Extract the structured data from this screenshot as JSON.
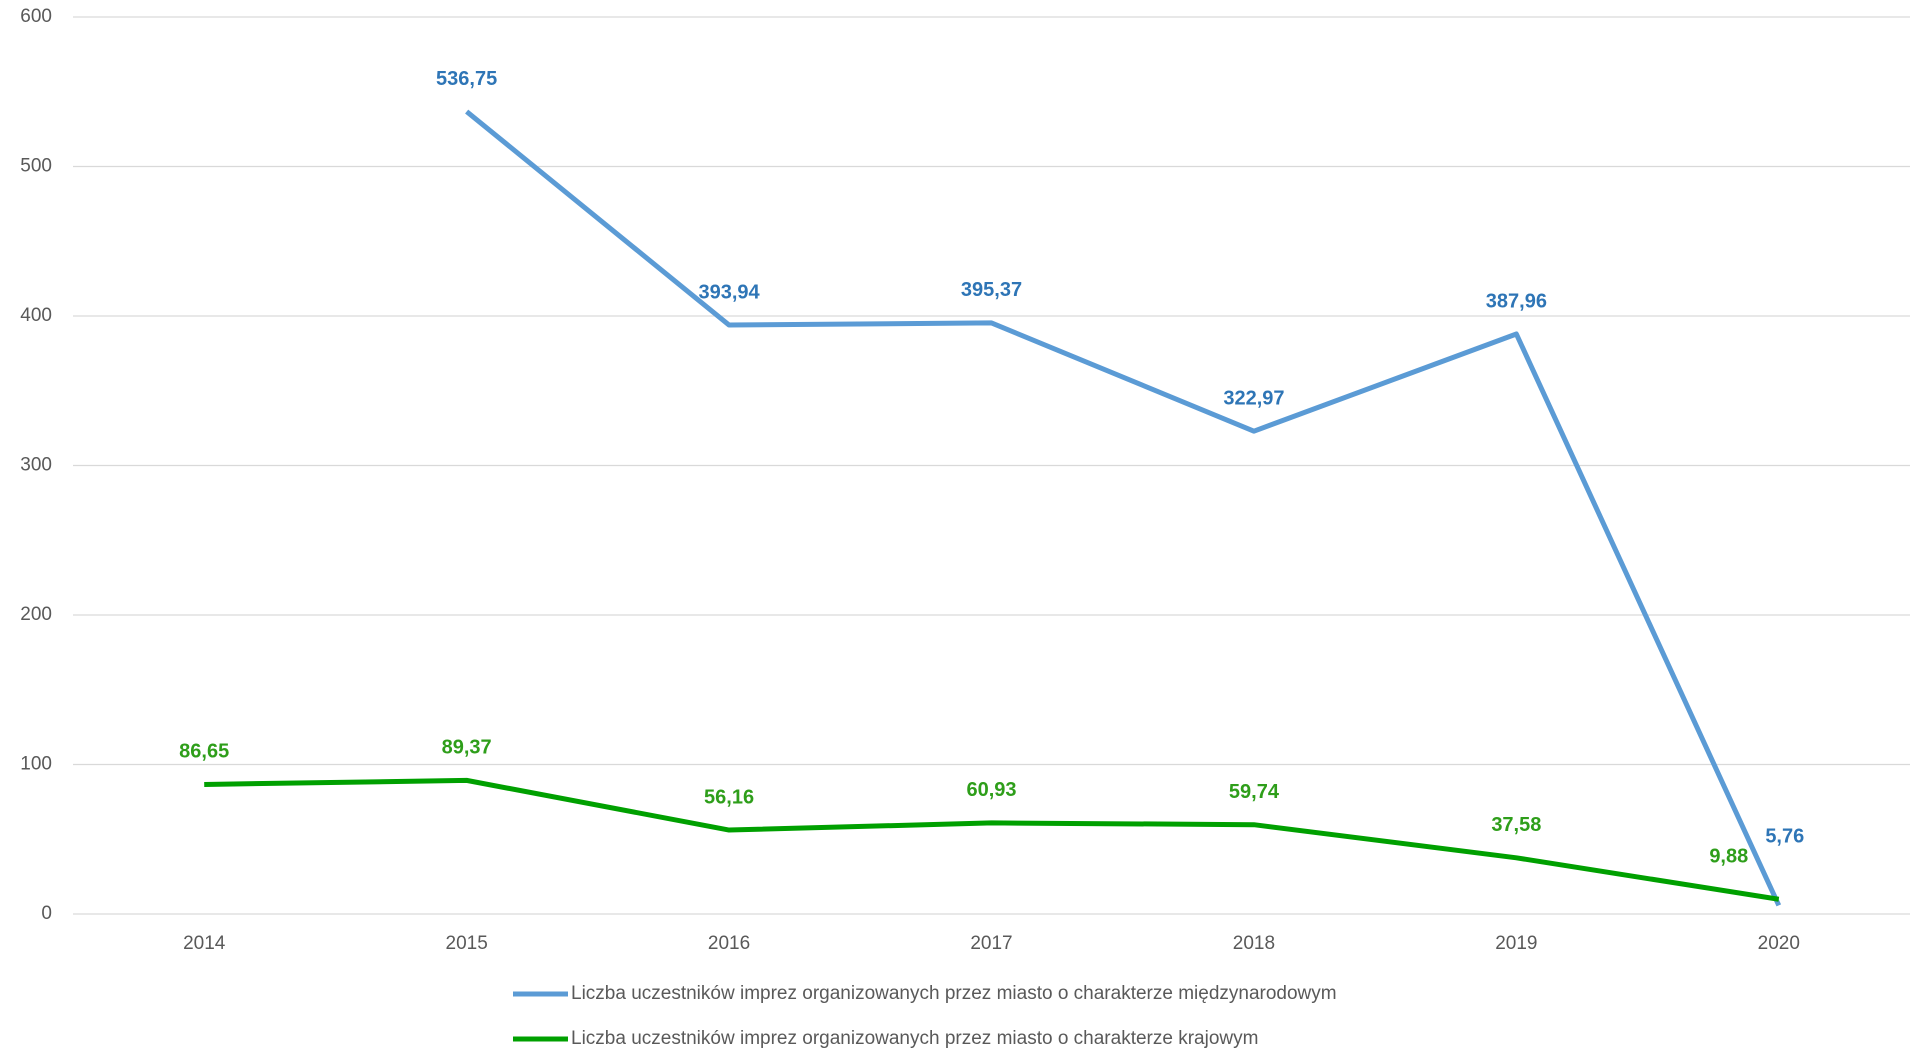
{
  "chart_data": {
    "type": "line",
    "categories": [
      "2014",
      "2015",
      "2016",
      "2017",
      "2018",
      "2019",
      "2020"
    ],
    "series": [
      {
        "name": "Liczba uczestników imprez organizowanych przez miasto o charakterze międzynarodowym",
        "color": "#5b9bd5",
        "values": [
          null,
          536.75,
          393.94,
          395.37,
          322.97,
          387.96,
          5.76
        ],
        "value_labels": [
          null,
          "536,75",
          "393,94",
          "395,37",
          "322,97",
          "387,96",
          "5,76"
        ],
        "label_color": "#2e75b6"
      },
      {
        "name": "Liczba uczestników imprez organizowanych przez miasto o charakterze krajowym",
        "color": "#00a000",
        "values": [
          86.65,
          89.37,
          56.16,
          60.93,
          59.74,
          37.58,
          9.88
        ],
        "value_labels": [
          "86,65",
          "89,37",
          "56,16",
          "60,93",
          "59,74",
          "37,58",
          "9,88"
        ],
        "label_color": "#2e9e1a"
      }
    ],
    "ylim": [
      0,
      600
    ],
    "yticks": [
      0,
      100,
      200,
      300,
      400,
      500,
      600
    ],
    "grid": true,
    "legend": "bottom"
  }
}
